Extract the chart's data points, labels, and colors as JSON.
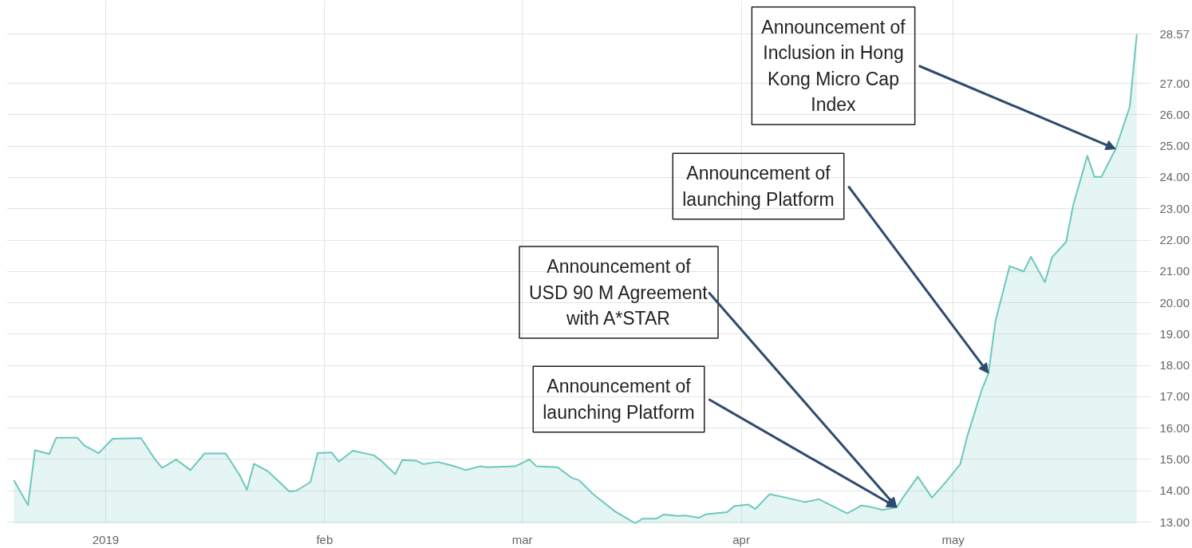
{
  "chart_data": {
    "type": "area",
    "x": [
      "2018-12-19",
      "2018-12-21",
      "2018-12-22",
      "2018-12-24",
      "2018-12-25",
      "2018-12-28",
      "2018-12-29",
      "2018-12-31",
      "2019-01-02",
      "2019-01-06",
      "2019-01-08",
      "2019-01-09",
      "2019-01-11",
      "2019-01-13",
      "2019-01-15",
      "2019-01-18",
      "2019-01-20",
      "2019-01-21",
      "2019-01-22",
      "2019-01-24",
      "2019-01-27",
      "2019-01-28",
      "2019-01-30",
      "2019-01-31",
      "2019-02-02",
      "2019-02-03",
      "2019-02-05",
      "2019-02-08",
      "2019-02-09",
      "2019-02-11",
      "2019-02-12",
      "2019-02-14",
      "2019-02-15",
      "2019-02-17",
      "2019-02-19",
      "2019-02-21",
      "2019-02-23",
      "2019-02-24",
      "2019-02-28",
      "2019-03-02",
      "2019-03-03",
      "2019-03-06",
      "2019-03-08",
      "2019-03-09",
      "2019-03-11",
      "2019-03-14",
      "2019-03-17",
      "2019-03-18",
      "2019-03-20",
      "2019-03-21",
      "2019-03-23",
      "2019-03-24",
      "2019-03-26",
      "2019-03-27",
      "2019-03-30",
      "2019-03-31",
      "2019-04-02",
      "2019-04-03",
      "2019-04-05",
      "2019-04-07",
      "2019-04-10",
      "2019-04-12",
      "2019-04-16",
      "2019-04-18",
      "2019-04-19",
      "2019-04-21",
      "2019-04-23",
      "2019-04-24",
      "2019-04-26",
      "2019-04-28",
      "2019-04-30",
      "2019-05-02",
      "2019-05-03",
      "2019-05-05",
      "2019-05-06",
      "2019-05-07",
      "2019-05-09",
      "2019-05-11",
      "2019-05-12",
      "2019-05-14",
      "2019-05-15",
      "2019-05-17",
      "2019-05-18",
      "2019-05-20",
      "2019-05-21",
      "2019-05-22",
      "2019-05-24",
      "2019-05-26",
      "2019-05-27"
    ],
    "series": [
      {
        "color": "#6cc8be",
        "values": [
          14.34,
          13.54,
          15.3,
          15.17,
          15.69,
          15.69,
          15.44,
          15.2,
          15.66,
          15.68,
          15.0,
          14.73,
          15.0,
          14.66,
          15.19,
          15.19,
          14.49,
          14.03,
          14.86,
          14.62,
          13.98,
          14.0,
          14.28,
          15.2,
          15.22,
          14.93,
          15.28,
          15.13,
          14.96,
          14.53,
          14.98,
          14.96,
          14.85,
          14.92,
          14.81,
          14.66,
          14.78,
          14.75,
          14.78,
          15.0,
          14.78,
          14.75,
          14.41,
          14.34,
          13.9,
          13.36,
          12.96,
          13.11,
          13.11,
          13.24,
          13.2,
          13.21,
          13.14,
          13.25,
          13.32,
          13.51,
          13.56,
          13.42,
          13.89,
          13.8,
          13.64,
          13.73,
          13.28,
          13.53,
          13.5,
          13.39,
          13.47,
          13.82,
          14.45,
          13.78,
          14.29,
          14.85,
          15.74,
          17.19,
          17.75,
          19.43,
          21.17,
          21.0,
          21.47,
          20.66,
          21.45,
          21.95,
          23.12,
          24.69,
          24.02,
          24.02,
          24.91,
          26.25,
          28.57
        ]
      }
    ],
    "xlim": [
      "2018-12-18",
      "2019-05-29"
    ],
    "xticks": [
      {
        "value": "2019-01-01",
        "label": "2019"
      },
      {
        "value": "2019-02-01",
        "label": "feb"
      },
      {
        "value": "2019-03-01",
        "label": "mar"
      },
      {
        "value": "2019-04-01",
        "label": "apr"
      },
      {
        "value": "2019-05-01",
        "label": "may"
      }
    ],
    "ylim": [
      12.95,
      29.65
    ],
    "yticks": [
      {
        "value": 13,
        "label": "13.00"
      },
      {
        "value": 14,
        "label": "14.00"
      },
      {
        "value": 15,
        "label": "15.00"
      },
      {
        "value": 16,
        "label": "16.00"
      },
      {
        "value": 17,
        "label": "17.00"
      },
      {
        "value": 18,
        "label": "18.00"
      },
      {
        "value": 19,
        "label": "19.00"
      },
      {
        "value": 20,
        "label": "20.00"
      },
      {
        "value": 21,
        "label": "21.00"
      },
      {
        "value": 22,
        "label": "22.00"
      },
      {
        "value": 23,
        "label": "23.00"
      },
      {
        "value": 24,
        "label": "24.00"
      },
      {
        "value": 25,
        "label": "25.00"
      },
      {
        "value": 26,
        "label": "26.00"
      },
      {
        "value": 27,
        "label": "27.00"
      },
      {
        "value": 28.57,
        "label": "28.57"
      }
    ],
    "grid": true,
    "annotations": [
      {
        "text": "Announcement of Inclusion in Hong Kong Micro Cap Index",
        "x": "2019-05-24",
        "y": 24.91
      },
      {
        "text": "Announcement of launching Platform",
        "x": "2019-05-06",
        "y": 17.75
      },
      {
        "text": "Announcement of USD 90 M Agreement with A*STAR",
        "x": "2019-04-23",
        "y": 13.47
      },
      {
        "text": "Announcement of launching Platform",
        "x": "2019-04-23",
        "y": 13.47
      }
    ]
  }
}
